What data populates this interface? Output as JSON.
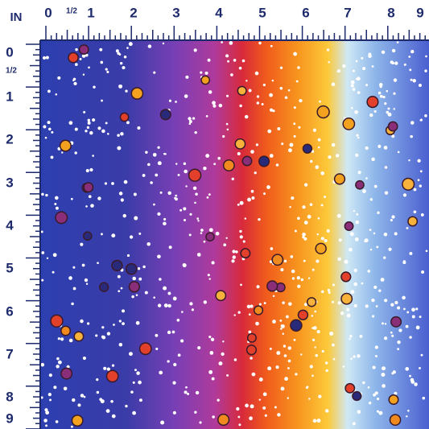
{
  "ruler": {
    "unit": "IN",
    "top_labels": [
      "0",
      "1/2",
      "1",
      "2",
      "3",
      "4",
      "5",
      "6",
      "7",
      "8",
      "9"
    ],
    "left_labels": [
      "0",
      "1/2",
      "1",
      "2",
      "3",
      "4",
      "5",
      "6",
      "7",
      "8",
      "9"
    ]
  }
}
